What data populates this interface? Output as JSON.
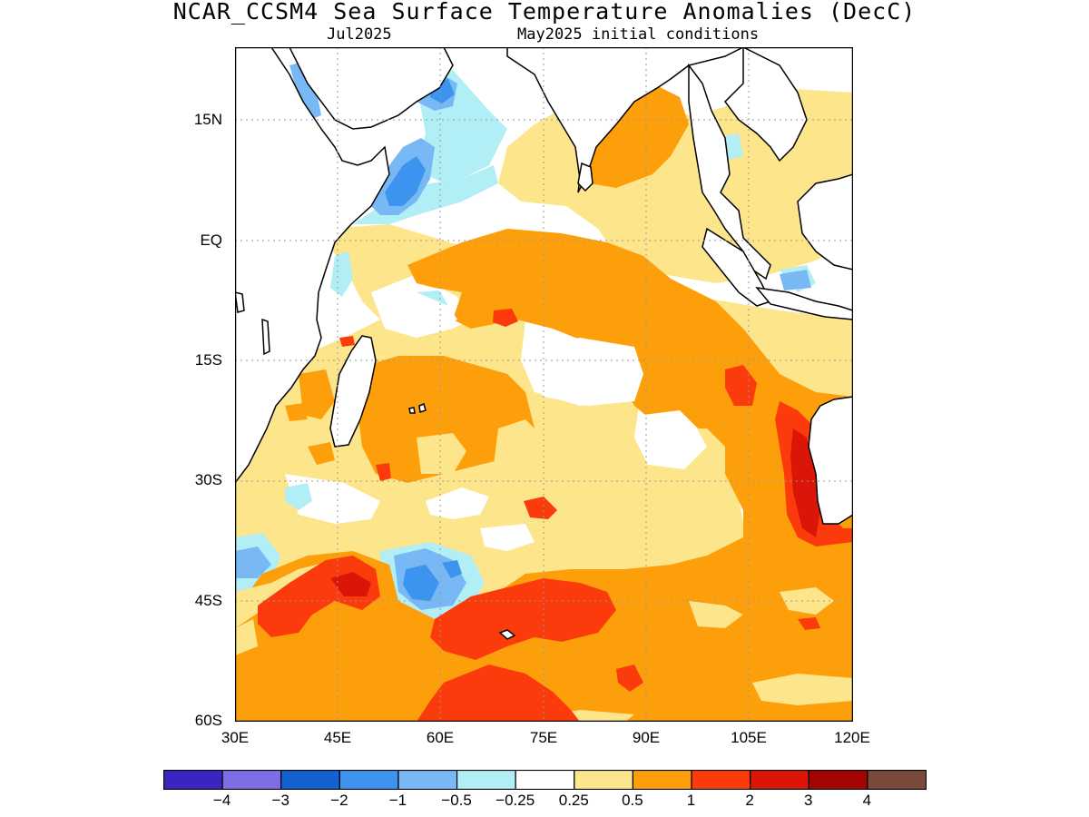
{
  "title": "NCAR_CCSM4 Sea Surface Temperature Anomalies (DecC)",
  "subtitle_left": "Jul2025",
  "subtitle_right": "May2025 initial conditions",
  "map": {
    "lon_range": [
      "30E",
      "120E"
    ],
    "lat_range": [
      "60S",
      "24N"
    ],
    "lat_ticks": [
      "15N",
      "EQ",
      "15S",
      "30S",
      "45S",
      "60S"
    ],
    "lon_ticks": [
      "30E",
      "45E",
      "60E",
      "75E",
      "90E",
      "105E",
      "120E"
    ],
    "grid": "dotted"
  },
  "colorbar": {
    "colors": [
      "#3b25c2",
      "#7d6ee6",
      "#1262d2",
      "#3c94ef",
      "#78b9f5",
      "#b1eef6",
      "#ffffff",
      "#fde58c",
      "#fd9f0a",
      "#fb3b0c",
      "#db1609",
      "#a30503",
      "#7a4a3c"
    ],
    "labels": [
      "−4",
      "−3",
      "−2",
      "−1",
      "−0.5",
      "−0.25",
      "0.25",
      "0.5",
      "1",
      "2",
      "3",
      "4"
    ]
  },
  "colors": {
    "land_outline": "#000000",
    "grid": "#999999"
  }
}
